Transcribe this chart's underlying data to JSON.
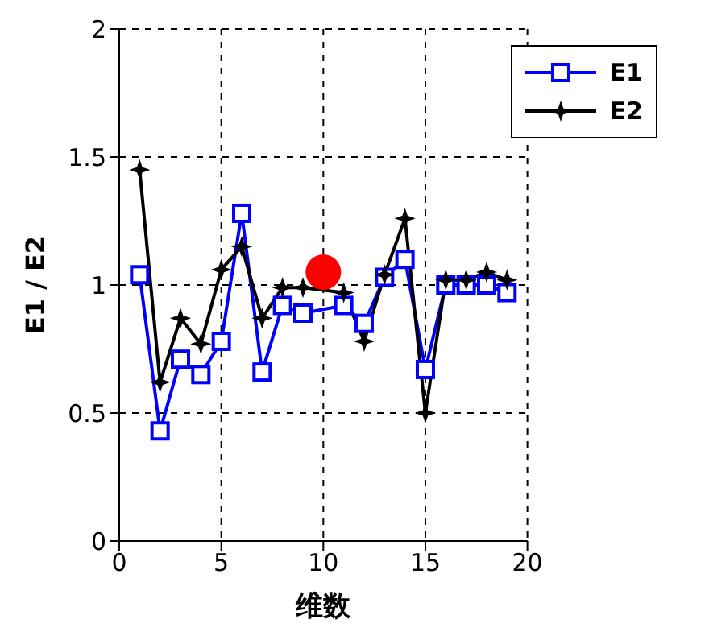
{
  "chart_data": {
    "type": "line",
    "xlabel": "维数",
    "ylabel": "E1 / E2",
    "x": [
      1,
      2,
      3,
      4,
      5,
      6,
      7,
      8,
      9,
      10,
      11,
      12,
      13,
      14,
      15,
      16,
      17,
      18,
      19
    ],
    "series": [
      {
        "name": "E1",
        "color": "#0000ff",
        "marker": "square",
        "values": [
          1.04,
          0.43,
          0.71,
          0.65,
          0.78,
          1.28,
          0.66,
          0.92,
          0.89,
          null,
          0.92,
          0.85,
          1.03,
          1.1,
          0.67,
          1.0,
          1.0,
          1.0,
          0.97
        ]
      },
      {
        "name": "E2",
        "color": "#000000",
        "marker": "star",
        "values": [
          1.45,
          0.62,
          0.87,
          0.77,
          1.06,
          1.15,
          0.87,
          0.99,
          0.99,
          null,
          0.97,
          0.78,
          1.04,
          1.26,
          0.5,
          1.02,
          1.02,
          1.05,
          1.02
        ]
      },
      {
        "type": "scatter",
        "color": "#ff0000",
        "marker": "circle",
        "x": [
          10
        ],
        "values": [
          1.05
        ]
      }
    ],
    "xlim": [
      0,
      20
    ],
    "xticks": [
      0,
      5,
      10,
      15,
      20
    ],
    "ylim": [
      0,
      2
    ],
    "yticks": [
      0,
      0.5,
      1,
      1.5,
      2
    ],
    "grid": true,
    "legend": "top right"
  }
}
